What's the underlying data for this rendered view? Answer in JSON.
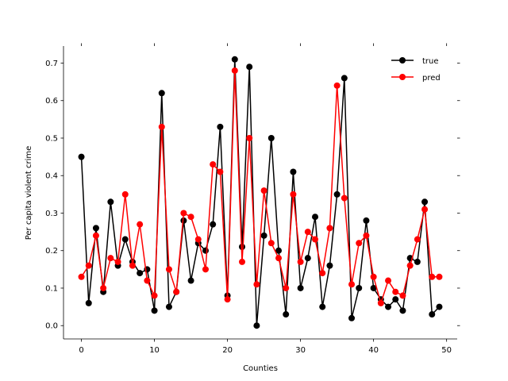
{
  "chart_data": {
    "type": "line",
    "xlabel": "Counties",
    "ylabel": "Per capita violent crime",
    "xlim": [
      -2.45,
      51.45
    ],
    "ylim": [
      -0.0355,
      0.7455
    ],
    "xticks": [
      0,
      10,
      20,
      30,
      40,
      50
    ],
    "yticks": [
      0.0,
      0.1,
      0.2,
      0.3,
      0.4,
      0.5,
      0.6,
      0.7
    ],
    "ytick_labels": [
      "0.0",
      "0.1",
      "0.2",
      "0.3",
      "0.4",
      "0.5",
      "0.6",
      "0.7"
    ],
    "xtick_labels": [
      "0",
      "10",
      "20",
      "30",
      "40",
      "50"
    ],
    "legend_position": "upper right",
    "grid": false,
    "x": [
      0,
      1,
      2,
      3,
      4,
      5,
      6,
      7,
      8,
      9,
      10,
      11,
      12,
      13,
      14,
      15,
      16,
      17,
      18,
      19,
      20,
      21,
      22,
      23,
      24,
      25,
      26,
      27,
      28,
      29,
      30,
      31,
      32,
      33,
      34,
      35,
      36,
      37,
      38,
      39,
      40,
      41,
      42,
      43,
      44,
      45,
      46,
      47,
      48,
      49
    ],
    "series": [
      {
        "name": "true",
        "color": "#000000",
        "values": [
          0.45,
          0.06,
          0.26,
          0.09,
          0.33,
          0.16,
          0.23,
          0.17,
          0.14,
          0.15,
          0.04,
          0.62,
          0.05,
          0.09,
          0.28,
          0.12,
          0.22,
          0.2,
          0.27,
          0.53,
          0.08,
          0.71,
          0.21,
          0.69,
          0.0,
          0.24,
          0.5,
          0.2,
          0.03,
          0.41,
          0.1,
          0.18,
          0.29,
          0.05,
          0.16,
          0.35,
          0.66,
          0.02,
          0.1,
          0.28,
          0.1,
          0.07,
          0.05,
          0.07,
          0.04,
          0.18,
          0.17,
          0.33,
          0.03,
          0.05
        ]
      },
      {
        "name": "pred",
        "color": "#ff0000",
        "values": [
          0.13,
          0.16,
          0.24,
          0.1,
          0.18,
          0.17,
          0.35,
          0.16,
          0.27,
          0.12,
          0.08,
          0.53,
          0.15,
          0.09,
          0.3,
          0.29,
          0.23,
          0.15,
          0.43,
          0.41,
          0.07,
          0.68,
          0.17,
          0.5,
          0.11,
          0.36,
          0.22,
          0.18,
          0.1,
          0.35,
          0.17,
          0.25,
          0.23,
          0.14,
          0.26,
          0.64,
          0.34,
          0.11,
          0.22,
          0.24,
          0.13,
          0.06,
          0.12,
          0.09,
          0.08,
          0.16,
          0.23,
          0.31,
          0.13,
          0.13
        ]
      }
    ]
  }
}
